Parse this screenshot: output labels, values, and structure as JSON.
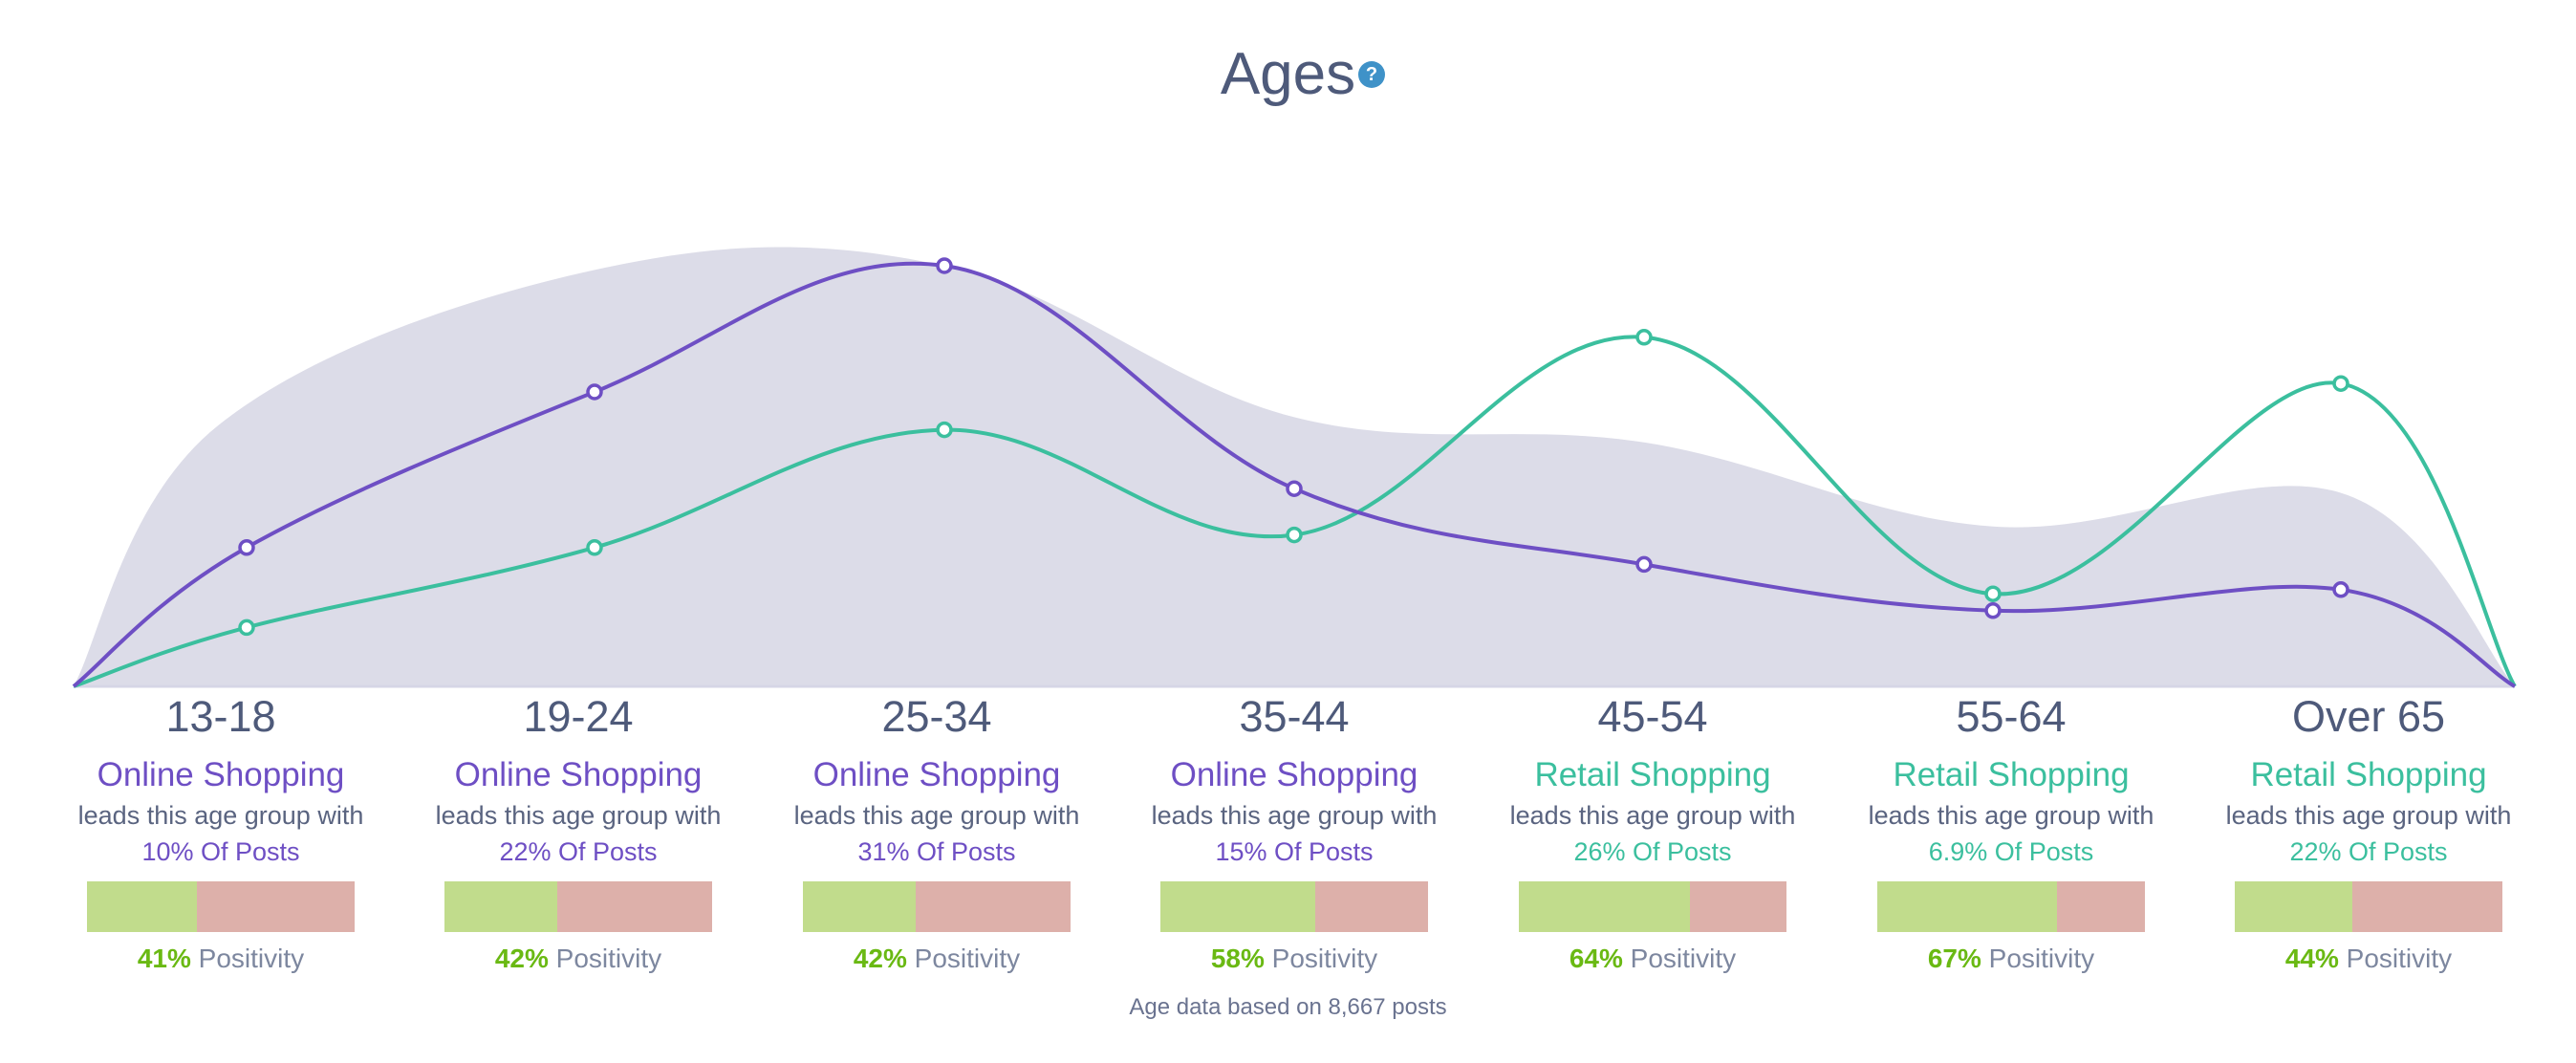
{
  "title": "Ages",
  "help_icon": "question-circle-icon",
  "footer": "Age data based on 8,667 posts",
  "colors": {
    "online": "#6e4fc4",
    "retail": "#3bbf9e",
    "area": "#dcdce8",
    "positive": "#c1dc8c",
    "negative": "#ddb0aa",
    "positivity_text": "#6ab913"
  },
  "chart_data": {
    "type": "line",
    "categories": [
      "13-18",
      "19-24",
      "25-34",
      "35-44",
      "45-54",
      "55-64",
      "Over 65"
    ],
    "y_axis_shown": false,
    "grid": false,
    "series": [
      {
        "color": "#6e4fc4",
        "values": [
          33,
          70,
          100,
          47,
          29,
          18,
          23
        ]
      },
      {
        "color": "#3bbf9e",
        "values": [
          14,
          33,
          61,
          36,
          83,
          22,
          72
        ]
      },
      {
        "type": "area",
        "color": "#dcdce8",
        "values": [
          62,
          99,
          100,
          64,
          58,
          38,
          46
        ]
      }
    ]
  },
  "groups": [
    {
      "age": "13-18",
      "category": "Online Shopping",
      "type": "online",
      "leads": "leads this age group with",
      "share": "10% Of Posts",
      "positivity": 41,
      "positivity_label": "41%",
      "positivity_text": "Positivity"
    },
    {
      "age": "19-24",
      "category": "Online Shopping",
      "type": "online",
      "leads": "leads this age group with",
      "share": "22% Of Posts",
      "positivity": 42,
      "positivity_label": "42%",
      "positivity_text": "Positivity"
    },
    {
      "age": "25-34",
      "category": "Online Shopping",
      "type": "online",
      "leads": "leads this age group with",
      "share": "31% Of Posts",
      "positivity": 42,
      "positivity_label": "42%",
      "positivity_text": "Positivity"
    },
    {
      "age": "35-44",
      "category": "Online Shopping",
      "type": "online",
      "leads": "leads this age group with",
      "share": "15% Of Posts",
      "positivity": 58,
      "positivity_label": "58%",
      "positivity_text": "Positivity"
    },
    {
      "age": "45-54",
      "category": "Retail Shopping",
      "type": "retail",
      "leads": "leads this age group with",
      "share": "26% Of Posts",
      "positivity": 64,
      "positivity_label": "64%",
      "positivity_text": "Positivity"
    },
    {
      "age": "55-64",
      "category": "Retail Shopping",
      "type": "retail",
      "leads": "leads this age group with",
      "share": "6.9% Of Posts",
      "positivity": 67,
      "positivity_label": "67%",
      "positivity_text": "Positivity"
    },
    {
      "age": "Over 65",
      "category": "Retail Shopping",
      "type": "retail",
      "leads": "leads this age group with",
      "share": "22% Of Posts",
      "positivity": 44,
      "positivity_label": "44%",
      "positivity_text": "Positivity"
    }
  ]
}
